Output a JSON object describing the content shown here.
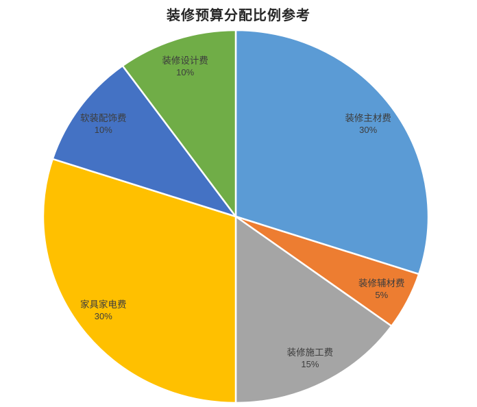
{
  "chart_data": {
    "type": "pie",
    "title": "装修预算分配比例参考",
    "start_angle_deg": 0,
    "direction": "clockwise",
    "legend": "none",
    "label_style": "inside-end, name + percent",
    "slices": [
      {
        "label": "装修主材费",
        "value": 30,
        "percent_label": "30%",
        "color": "#5B9BD5"
      },
      {
        "label": "装修辅材费",
        "value": 5,
        "percent_label": "5%",
        "color": "#ED7D31"
      },
      {
        "label": "装修施工费",
        "value": 15,
        "percent_label": "15%",
        "color": "#A5A5A5"
      },
      {
        "label": "家具家电费",
        "value": 30,
        "percent_label": "30%",
        "color": "#FFC000"
      },
      {
        "label": "软装配饰费",
        "value": 10,
        "percent_label": "10%",
        "color": "#4472C4"
      },
      {
        "label": "装修设计费",
        "value": 10,
        "percent_label": "10%",
        "color": "#70AD47"
      }
    ],
    "slice_border_color": "#ffffff",
    "label_color": "#3d3d3d",
    "background_color": "#ffffff"
  }
}
